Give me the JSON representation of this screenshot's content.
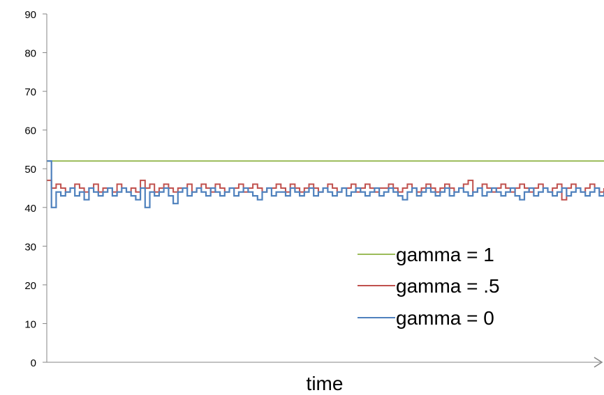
{
  "chart_data": {
    "type": "line",
    "title": "",
    "xlabel": "time",
    "ylabel": "",
    "ylim": [
      0,
      90
    ],
    "yticks": [
      0,
      10,
      20,
      30,
      40,
      50,
      60,
      70,
      80,
      90
    ],
    "grid": false,
    "legend_position": "bottom-right",
    "series": [
      {
        "name": "gamma = 1",
        "color": "#9bbb59",
        "values": [
          52,
          52,
          52,
          52,
          52,
          52,
          52,
          52,
          52,
          52,
          52,
          52,
          52,
          52,
          52,
          52,
          52,
          52,
          52,
          52,
          52,
          52,
          52,
          52,
          52,
          52,
          52,
          52,
          52,
          52,
          52,
          52,
          52,
          52,
          52,
          52,
          52,
          52,
          52,
          52,
          52,
          52,
          52,
          52,
          52,
          52,
          52,
          52,
          52,
          52,
          52,
          52,
          52,
          52,
          52,
          52,
          52,
          52,
          52,
          52,
          52,
          52,
          52,
          52,
          52,
          52,
          52,
          52,
          52,
          52,
          52,
          52,
          52,
          52,
          52,
          52,
          52,
          52,
          52,
          52,
          52,
          52,
          52,
          52,
          52,
          52,
          52,
          52,
          52,
          52,
          52,
          52,
          52,
          52,
          52,
          52,
          52,
          52,
          52,
          52,
          52,
          52,
          52,
          52,
          52,
          52,
          52,
          52,
          52,
          52,
          52,
          52,
          52,
          52,
          52,
          52,
          52,
          52,
          52,
          52
        ]
      },
      {
        "name": "gamma = .5",
        "color": "#c0504d",
        "values": [
          47,
          45,
          46,
          45,
          44,
          45,
          46,
          45,
          44,
          45,
          46,
          44,
          45,
          45,
          44,
          46,
          45,
          44,
          45,
          44,
          47,
          45,
          46,
          44,
          45,
          46,
          45,
          44,
          45,
          45,
          46,
          44,
          45,
          46,
          45,
          44,
          46,
          45,
          44,
          45,
          45,
          46,
          44,
          45,
          46,
          45,
          44,
          45,
          45,
          46,
          45,
          44,
          46,
          45,
          44,
          45,
          46,
          45,
          44,
          45,
          46,
          45,
          44,
          45,
          45,
          46,
          44,
          45,
          46,
          45,
          44,
          45,
          45,
          46,
          45,
          44,
          45,
          46,
          45,
          44,
          45,
          46,
          45,
          44,
          45,
          46,
          45,
          44,
          45,
          46,
          47,
          44,
          45,
          46,
          45,
          44,
          45,
          46,
          45,
          44,
          45,
          46,
          45,
          44,
          45,
          46,
          45,
          44,
          45,
          46,
          42,
          45,
          46,
          45,
          44,
          45,
          46,
          45,
          44,
          45
        ]
      },
      {
        "name": "gamma = 0",
        "color": "#4f81bd",
        "values": [
          52,
          40,
          44,
          43,
          44,
          45,
          43,
          44,
          42,
          45,
          44,
          43,
          44,
          45,
          43,
          44,
          45,
          44,
          43,
          42,
          45,
          40,
          44,
          43,
          44,
          45,
          43,
          41,
          44,
          45,
          43,
          44,
          45,
          44,
          43,
          45,
          44,
          43,
          44,
          45,
          43,
          44,
          45,
          44,
          43,
          42,
          44,
          45,
          43,
          44,
          44,
          43,
          45,
          44,
          43,
          44,
          45,
          43,
          44,
          45,
          44,
          43,
          44,
          45,
          43,
          44,
          45,
          44,
          43,
          44,
          45,
          43,
          44,
          45,
          44,
          43,
          42,
          44,
          45,
          43,
          44,
          45,
          44,
          43,
          44,
          45,
          43,
          44,
          45,
          44,
          43,
          44,
          45,
          43,
          44,
          45,
          44,
          43,
          44,
          45,
          43,
          42,
          44,
          45,
          43,
          44,
          45,
          44,
          43,
          44,
          45,
          43,
          44,
          45,
          44,
          43,
          44,
          45,
          43,
          44
        ]
      }
    ]
  }
}
